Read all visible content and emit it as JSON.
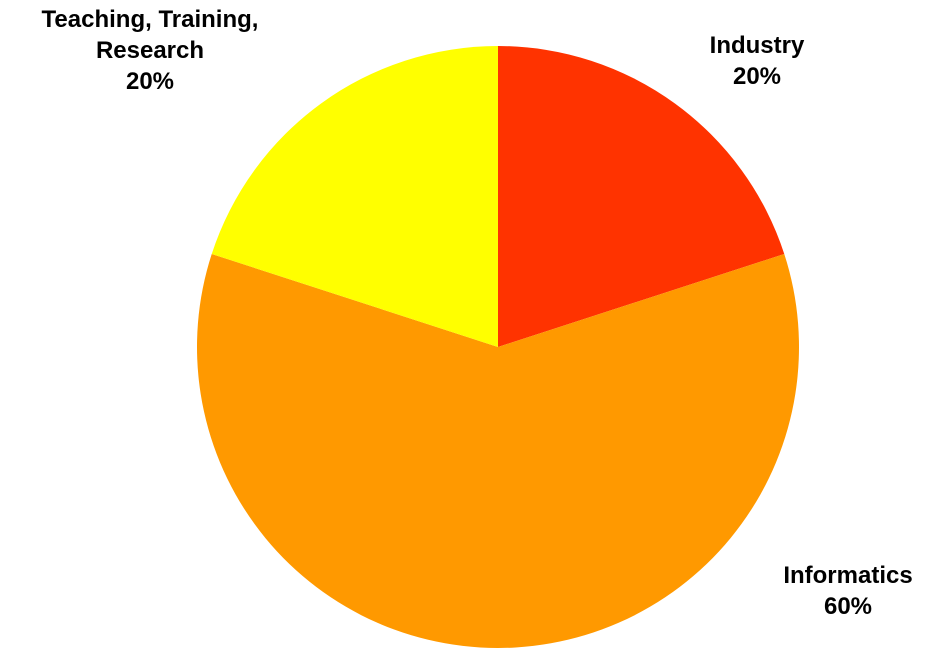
{
  "chart_data": {
    "type": "pie",
    "categories": [
      "Industry",
      "Informatics",
      "Teaching, Training, Research"
    ],
    "values": [
      20,
      60,
      20
    ],
    "value_labels": [
      "20%",
      "60%",
      "20%"
    ],
    "colors": [
      "#ff3300",
      "#ff9900",
      "#ffff00"
    ]
  }
}
